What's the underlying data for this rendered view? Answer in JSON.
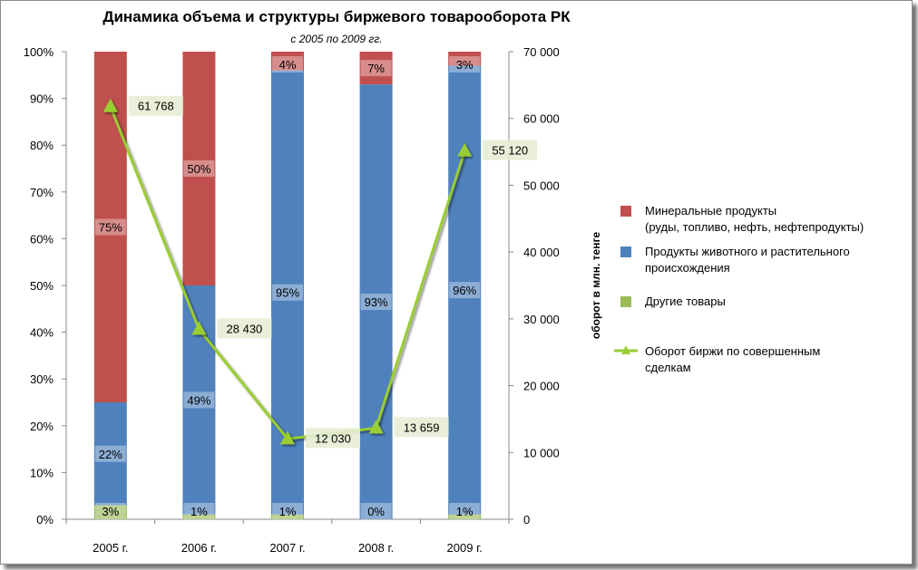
{
  "chart_data": {
    "type": "bar",
    "stacked": "percent",
    "title": "Динамика объема и структуры биржевого товарооборота  РК",
    "subtitle": "с  2005 по 2009 гг.",
    "categories": [
      "2005 г.",
      "2006 г.",
      "2007 г.",
      "2008 г.",
      "2009 г."
    ],
    "y_left": {
      "ticks": [
        "0%",
        "10%",
        "20%",
        "30%",
        "40%",
        "50%",
        "60%",
        "70%",
        "80%",
        "90%",
        "100%"
      ],
      "ylim": [
        0,
        100
      ]
    },
    "y_right": {
      "label": "оборот  в  млн. тенге",
      "ticks": [
        "0",
        "10 000",
        "20 000",
        "30 000",
        "40 000",
        "50 000",
        "60 000",
        "70 000"
      ],
      "ylim": [
        0,
        70000
      ]
    },
    "series": [
      {
        "name": "Другие товары",
        "color": "#9bbb59",
        "values": [
          3,
          1,
          1,
          0,
          1
        ],
        "labels": [
          "3%",
          "1%",
          "1%",
          "0%",
          "1%"
        ]
      },
      {
        "name": "Продукты животного и растительного происхождения",
        "color": "#4f81bd",
        "values": [
          22,
          49,
          95,
          93,
          96
        ],
        "labels": [
          "22%",
          "49%",
          "95%",
          "93%",
          "96%"
        ]
      },
      {
        "name": "Минеральные продукты (руды, топливо, нефть, нефтепродукты)",
        "color": "#c0504d",
        "values": [
          75,
          50,
          4,
          7,
          3
        ],
        "labels": [
          "75%",
          "50%",
          "4%",
          "7%",
          "3%"
        ]
      }
    ],
    "line": {
      "name": "Оборот биржи по совершенным сделкам",
      "color": "#9acd32",
      "axis": "right",
      "values": [
        61768,
        28430,
        12030,
        13659,
        55120
      ],
      "labels": [
        "61 768",
        "28 430",
        "12 030",
        "13 659",
        "55 120"
      ]
    },
    "legend": {
      "position": "right",
      "items": [
        {
          "line1": "Минеральные продукты",
          "line2": "(руды, топливо, нефть, нефтепродукты)",
          "color": "#c0504d",
          "kind": "box"
        },
        {
          "line1": "Продукты животного и растительного",
          "line2": "происхождения",
          "color": "#4f81bd",
          "kind": "box"
        },
        {
          "line1": "Другие товары",
          "line2": "",
          "color": "#9bbb59",
          "kind": "box"
        },
        {
          "line1": "Оборот биржи по совершенным",
          "line2": "сделкам",
          "color": "#9acd32",
          "kind": "line"
        }
      ]
    },
    "grid": false
  }
}
